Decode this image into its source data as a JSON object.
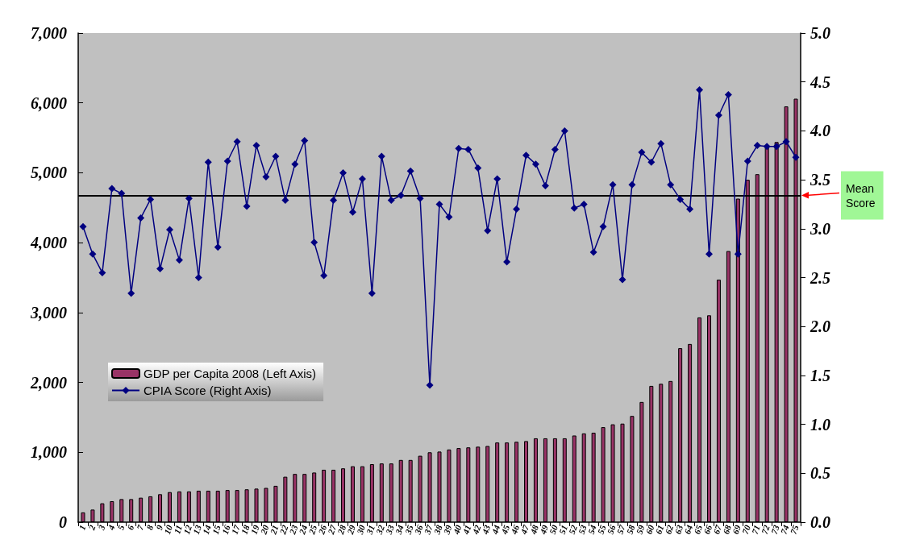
{
  "chart_data": {
    "type": "bar",
    "categories": [
      "1",
      "2",
      "3",
      "4",
      "5",
      "6",
      "7",
      "8",
      "9",
      "10",
      "11",
      "12",
      "13",
      "14",
      "15",
      "16",
      "17",
      "18",
      "19",
      "20",
      "21",
      "22",
      "23",
      "24",
      "25",
      "26",
      "27",
      "28",
      "29",
      "30",
      "31",
      "32",
      "33",
      "34",
      "35",
      "36",
      "37",
      "38",
      "39",
      "40",
      "41",
      "42",
      "43",
      "44",
      "45",
      "46",
      "47",
      "48",
      "49",
      "50",
      "51",
      "52",
      "53",
      "54",
      "55",
      "56",
      "57",
      "58",
      "59",
      "60",
      "61",
      "62",
      "63",
      "64",
      "65",
      "66",
      "67",
      "68",
      "69",
      "70",
      "71",
      "72",
      "73",
      "74",
      "75"
    ],
    "series": [
      {
        "name": "GDP per Capita 2008 (Left Axis)",
        "color": "#993366",
        "values": [
          140,
          180,
          270,
          300,
          330,
          330,
          350,
          370,
          400,
          430,
          440,
          440,
          450,
          450,
          450,
          460,
          460,
          470,
          480,
          490,
          520,
          650,
          690,
          690,
          710,
          750,
          750,
          770,
          800,
          800,
          830,
          840,
          840,
          890,
          890,
          950,
          1000,
          1010,
          1040,
          1060,
          1070,
          1080,
          1090,
          1140,
          1140,
          1150,
          1160,
          1200,
          1200,
          1200,
          1200,
          1240,
          1270,
          1280,
          1360,
          1400,
          1410,
          1520,
          1720,
          1950,
          1980,
          2020,
          2490,
          2550,
          2930,
          2960,
          3470,
          3880,
          4630,
          4900,
          4980,
          5360,
          5440,
          5950,
          6060
        ]
      },
      {
        "name": "CPIA Score (Right Axis)",
        "type": "line",
        "axis": "y2",
        "color": "#000080",
        "marker": "diamond",
        "values": [
          3.02,
          2.74,
          2.55,
          3.41,
          3.36,
          2.34,
          3.11,
          3.3,
          2.59,
          2.99,
          2.68,
          3.31,
          2.5,
          3.68,
          2.81,
          3.69,
          3.89,
          3.23,
          3.85,
          3.53,
          3.74,
          3.29,
          3.66,
          3.9,
          2.86,
          2.52,
          3.29,
          3.57,
          3.17,
          3.51,
          2.34,
          3.74,
          3.29,
          3.34,
          3.59,
          3.31,
          1.4,
          3.25,
          3.12,
          3.82,
          3.81,
          3.62,
          2.98,
          3.51,
          2.66,
          3.2,
          3.75,
          3.66,
          3.44,
          3.81,
          4.0,
          3.21,
          3.25,
          2.76,
          3.02,
          3.45,
          2.48,
          3.45,
          3.78,
          3.68,
          3.87,
          3.45,
          3.3,
          3.2,
          4.42,
          2.74,
          4.16,
          4.37,
          2.74,
          3.69,
          3.85,
          3.84,
          3.84,
          3.89,
          3.73
        ]
      }
    ],
    "ylim": [
      0,
      7000
    ],
    "yticks": [
      {
        "value": 0,
        "label": "0"
      },
      {
        "value": 1000,
        "label": "1,000"
      },
      {
        "value": 2000,
        "label": "2,000"
      },
      {
        "value": 3000,
        "label": "3,000"
      },
      {
        "value": 4000,
        "label": "4,000"
      },
      {
        "value": 5000,
        "label": "5,000"
      },
      {
        "value": 6000,
        "label": "6,000"
      },
      {
        "value": 7000,
        "label": "7,000"
      }
    ],
    "y2lim": [
      0,
      5
    ],
    "y2ticks": [
      {
        "value": 0,
        "label": "0.0"
      },
      {
        "value": 0.5,
        "label": "0.5"
      },
      {
        "value": 1,
        "label": "1.0"
      },
      {
        "value": 1.5,
        "label": "1.5"
      },
      {
        "value": 2,
        "label": "2.0"
      },
      {
        "value": 2.5,
        "label": "2.5"
      },
      {
        "value": 3,
        "label": "3.0"
      },
      {
        "value": 3.5,
        "label": "3.5"
      },
      {
        "value": 4,
        "label": "4.0"
      },
      {
        "value": 4.5,
        "label": "4.5"
      },
      {
        "value": 5,
        "label": "5.0"
      }
    ],
    "ref_lines": [
      {
        "axis": "y2",
        "value": 3.34,
        "label": "Mean Score",
        "color": "#000000"
      }
    ],
    "legend": "bottom left",
    "grid": false
  }
}
